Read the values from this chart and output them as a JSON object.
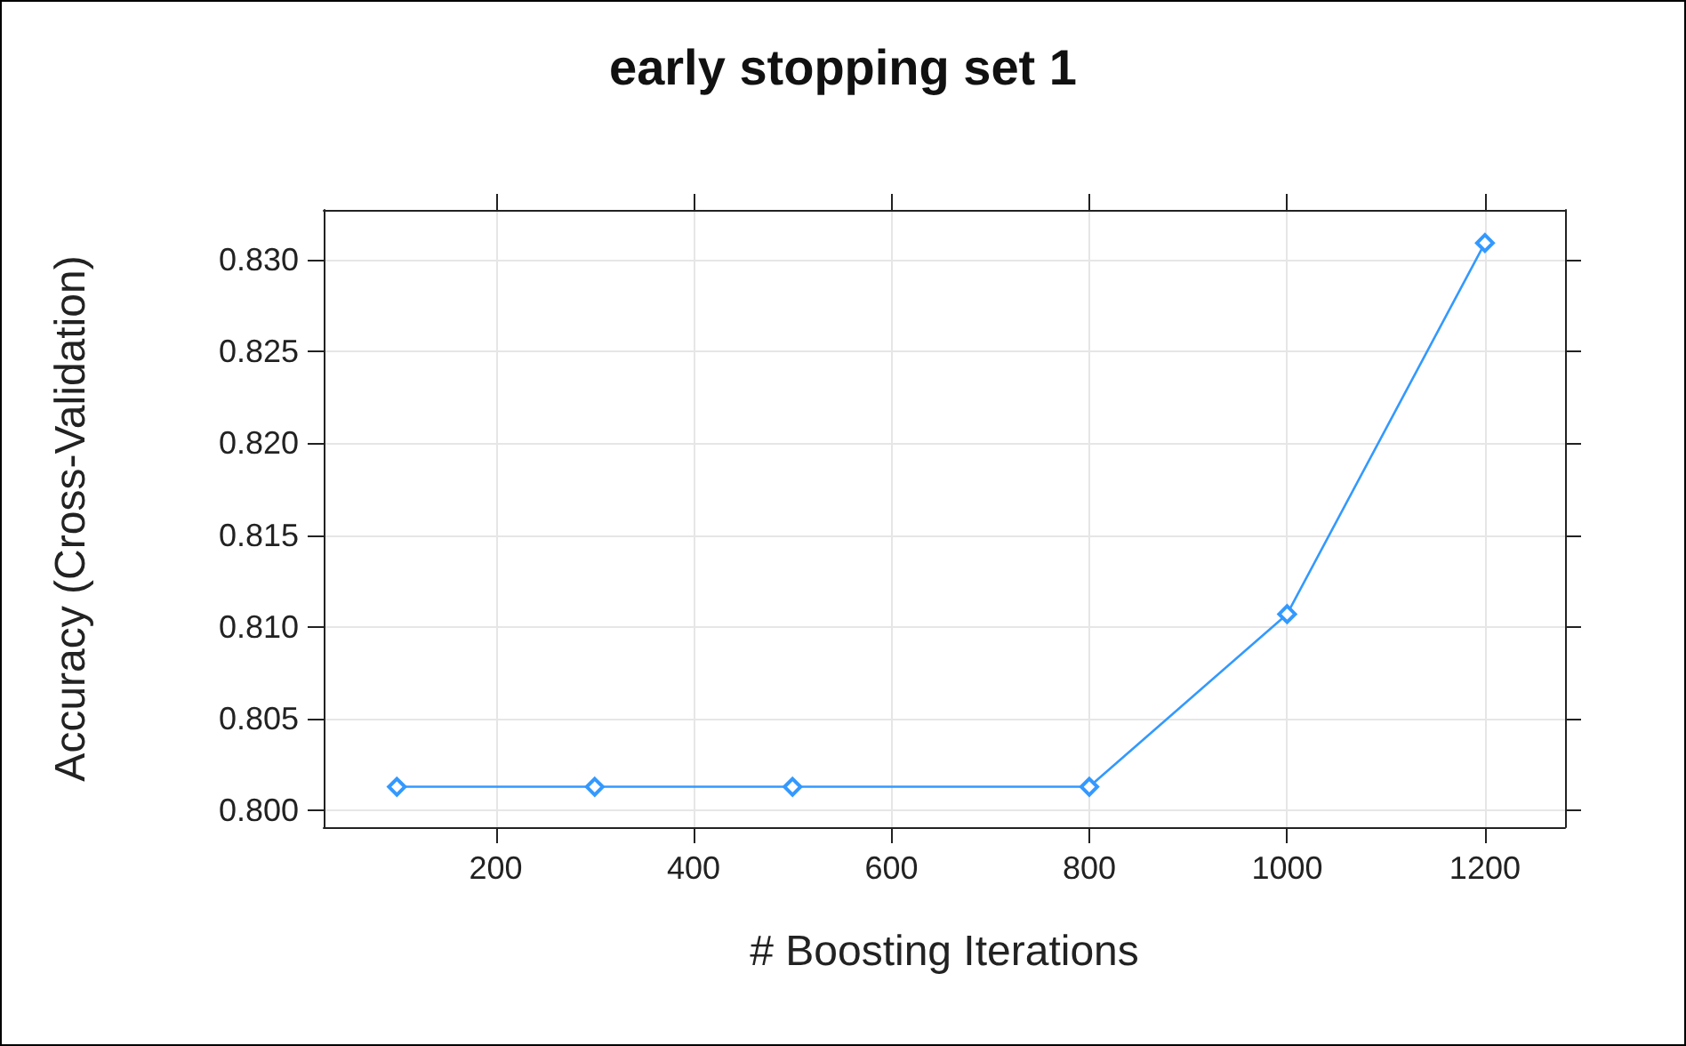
{
  "chart_data": {
    "type": "line",
    "title": "early stopping set 1",
    "xlabel": "# Boosting Iterations",
    "ylabel": "Accuracy (Cross-Validation)",
    "x": [
      100,
      300,
      500,
      800,
      1000,
      1200
    ],
    "series": [
      {
        "color": "#3399ff",
        "values": [
          0.8013,
          0.8013,
          0.8013,
          0.8013,
          0.8107,
          0.8309
        ]
      }
    ],
    "xlim": [
      26,
      1281
    ],
    "xticks": [
      200,
      400,
      600,
      800,
      1000,
      1200
    ],
    "ylim": [
      0.7991,
      0.8327
    ],
    "yticks": [
      {
        "value": 0.8,
        "label": "0.800"
      },
      {
        "value": 0.805,
        "label": "0.805"
      },
      {
        "value": 0.81,
        "label": "0.810"
      },
      {
        "value": 0.815,
        "label": "0.815"
      },
      {
        "value": 0.82,
        "label": "0.820"
      },
      {
        "value": 0.825,
        "label": "0.825"
      },
      {
        "value": 0.83,
        "label": "0.830"
      }
    ],
    "grid": true,
    "marker": "diamond",
    "line_style": "solid"
  }
}
